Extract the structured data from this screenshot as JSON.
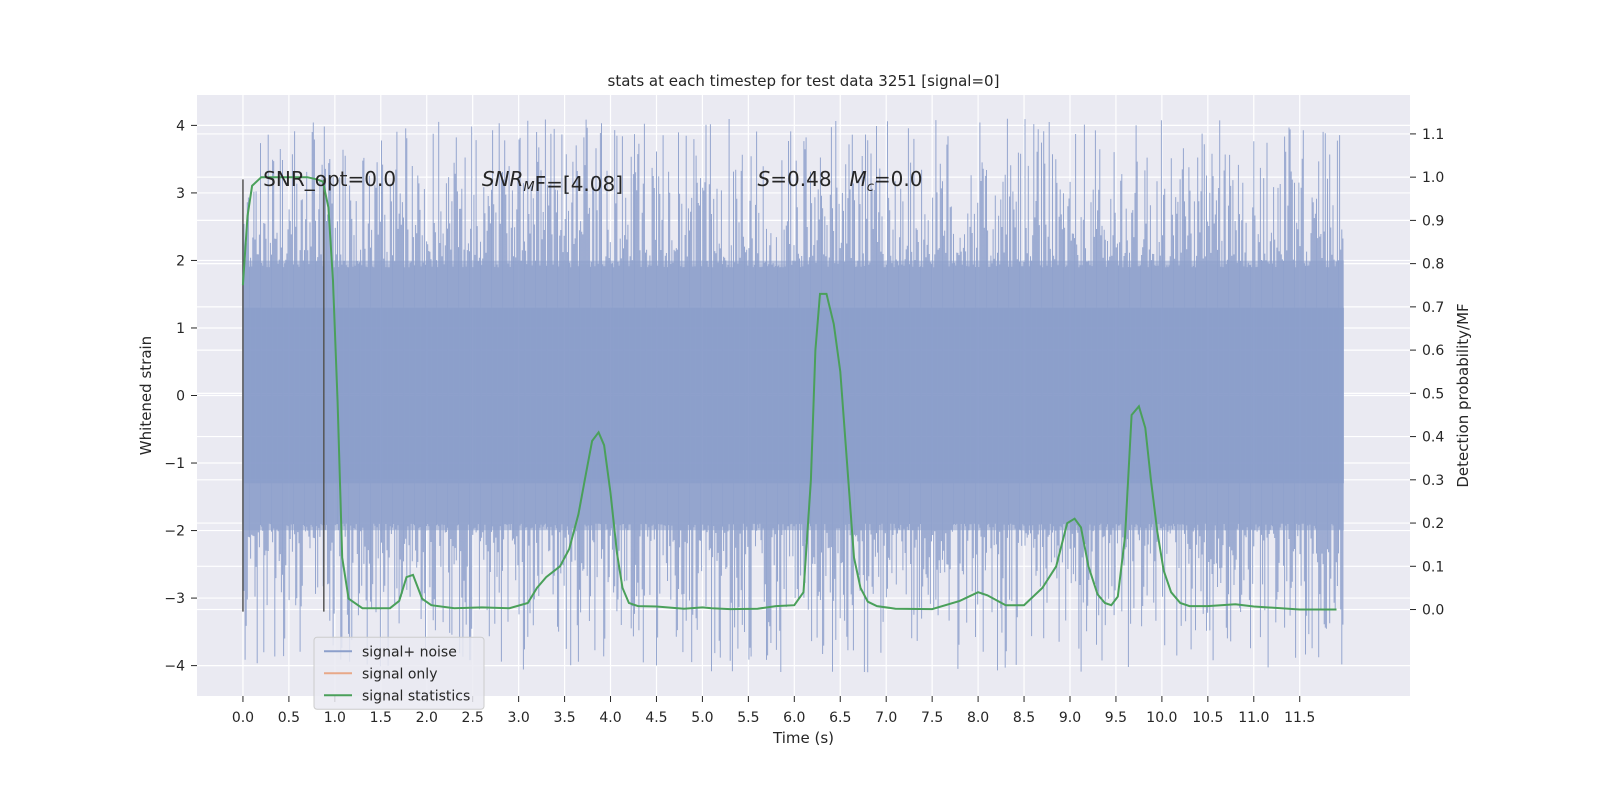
{
  "chart_data": {
    "type": "line",
    "title": "stats at each timestep for test data 3251 [signal=0]",
    "xlabel": "Time (s)",
    "ylabel_left": "Whitened strain",
    "ylabel_right": "Detection probability/MF",
    "xlim": [
      -0.5,
      12.7
    ],
    "ylim_left": [
      -4.45,
      4.45
    ],
    "ylim_right": [
      -0.2,
      1.19
    ],
    "x_ticks": [
      0.0,
      0.5,
      1.0,
      1.5,
      2.0,
      2.5,
      3.0,
      3.5,
      4.0,
      4.5,
      5.0,
      5.5,
      6.0,
      6.5,
      7.0,
      7.5,
      8.0,
      8.5,
      9.0,
      9.5,
      10.0,
      10.5,
      11.0,
      11.5
    ],
    "x_tick_labels": [
      "0.0",
      "0.5",
      "1.0",
      "1.5",
      "2.0",
      "2.5",
      "3.0",
      "3.5",
      "4.0",
      "4.5",
      "5.0",
      "5.5",
      "6.0",
      "6.5",
      "7.0",
      "7.5",
      "8.0",
      "8.5",
      "9.0",
      "9.5",
      "10.0",
      "10.5",
      "11.0",
      "11.5"
    ],
    "y_left_ticks": [
      -4,
      -3,
      -2,
      -1,
      0,
      1,
      2,
      3,
      4
    ],
    "y_left_tick_labels": [
      "−4",
      "−3",
      "−2",
      "−1",
      "0",
      "1",
      "2",
      "3",
      "4"
    ],
    "y_right_ticks": [
      0.0,
      0.1,
      0.2,
      0.3,
      0.4,
      0.5,
      0.6,
      0.7,
      0.8,
      0.9,
      1.0,
      1.1
    ],
    "y_right_tick_labels": [
      "0.0",
      "0.1",
      "0.2",
      "0.3",
      "0.4",
      "0.5",
      "0.6",
      "0.7",
      "0.8",
      "0.9",
      "1.0",
      "1.1"
    ],
    "grid": true,
    "legend": {
      "placement": "lower-left",
      "entries": [
        {
          "label": "signal+ noise",
          "color": "#8c9fcb"
        },
        {
          "label": "signal only",
          "color": "#e8a888"
        },
        {
          "label": "signal statistics",
          "color": "#4aa05a"
        }
      ]
    },
    "noise_series": {
      "name": "signal+ noise",
      "color": "#8c9fcb",
      "x_range": [
        0.0,
        11.98
      ],
      "band_outer": [
        -2.0,
        2.0
      ],
      "band_inner": [
        -1.3,
        1.3
      ],
      "peak_range": [
        -4.1,
        4.1
      ]
    },
    "signal_statistics": {
      "name": "signal statistics",
      "color": "#4aa05a",
      "x": [
        0.0,
        0.05,
        0.1,
        0.2,
        0.3,
        0.5,
        0.7,
        0.8,
        0.87,
        0.93,
        0.98,
        1.03,
        1.08,
        1.15,
        1.3,
        1.6,
        1.7,
        1.78,
        1.85,
        1.95,
        2.05,
        2.3,
        2.6,
        2.9,
        3.1,
        3.2,
        3.3,
        3.45,
        3.55,
        3.65,
        3.72,
        3.8,
        3.87,
        3.93,
        4.0,
        4.07,
        4.13,
        4.2,
        4.3,
        4.5,
        4.8,
        5.0,
        5.1,
        5.3,
        5.6,
        5.8,
        6.0,
        6.1,
        6.18,
        6.23,
        6.28,
        6.35,
        6.43,
        6.5,
        6.57,
        6.65,
        6.72,
        6.8,
        6.9,
        7.1,
        7.5,
        7.8,
        8.0,
        8.1,
        8.3,
        8.5,
        8.7,
        8.85,
        8.97,
        9.05,
        9.12,
        9.2,
        9.3,
        9.38,
        9.45,
        9.52,
        9.6,
        9.67,
        9.75,
        9.82,
        9.88,
        9.95,
        10.02,
        10.1,
        10.2,
        10.3,
        10.5,
        10.8,
        11.0,
        11.5,
        11.9
      ],
      "y": [
        0.75,
        0.91,
        0.98,
        1.0,
        1.0,
        1.0,
        1.0,
        0.995,
        0.99,
        0.93,
        0.76,
        0.48,
        0.12,
        0.025,
        0.003,
        0.003,
        0.02,
        0.075,
        0.08,
        0.025,
        0.01,
        0.003,
        0.005,
        0.003,
        0.015,
        0.05,
        0.075,
        0.1,
        0.14,
        0.22,
        0.3,
        0.39,
        0.41,
        0.38,
        0.27,
        0.13,
        0.05,
        0.015,
        0.008,
        0.007,
        0.002,
        0.005,
        0.003,
        0.001,
        0.002,
        0.008,
        0.01,
        0.04,
        0.3,
        0.6,
        0.73,
        0.73,
        0.66,
        0.55,
        0.35,
        0.12,
        0.05,
        0.018,
        0.008,
        0.002,
        0.001,
        0.02,
        0.04,
        0.033,
        0.01,
        0.01,
        0.05,
        0.1,
        0.2,
        0.21,
        0.19,
        0.1,
        0.035,
        0.015,
        0.01,
        0.03,
        0.17,
        0.45,
        0.47,
        0.42,
        0.3,
        0.18,
        0.09,
        0.04,
        0.015,
        0.008,
        0.008,
        0.012,
        0.007,
        0.0,
        0.0
      ]
    },
    "vertical_markers": [
      {
        "x": 0.0,
        "y_range": [
          -3.2,
          3.2
        ],
        "color": "#555555"
      },
      {
        "x": 0.88,
        "y_range": [
          -3.2,
          3.2
        ],
        "color": "#555555"
      }
    ],
    "annotations": {
      "snr_opt": {
        "text": "SNR_opt=0.0",
        "x": 0.22,
        "y": 3.1
      },
      "snr_mf": {
        "base": "SNR",
        "sub": "M",
        "suffix": "F=[4.08]",
        "x": 2.6,
        "y": 3.1
      },
      "s_value": {
        "symbol": "S",
        "value": "=0.48",
        "x": 5.6,
        "y": 3.1
      },
      "mc_value": {
        "symbol": "M",
        "sub": "c",
        "value": "=0.0",
        "x": 6.6,
        "y": 3.1
      }
    }
  }
}
